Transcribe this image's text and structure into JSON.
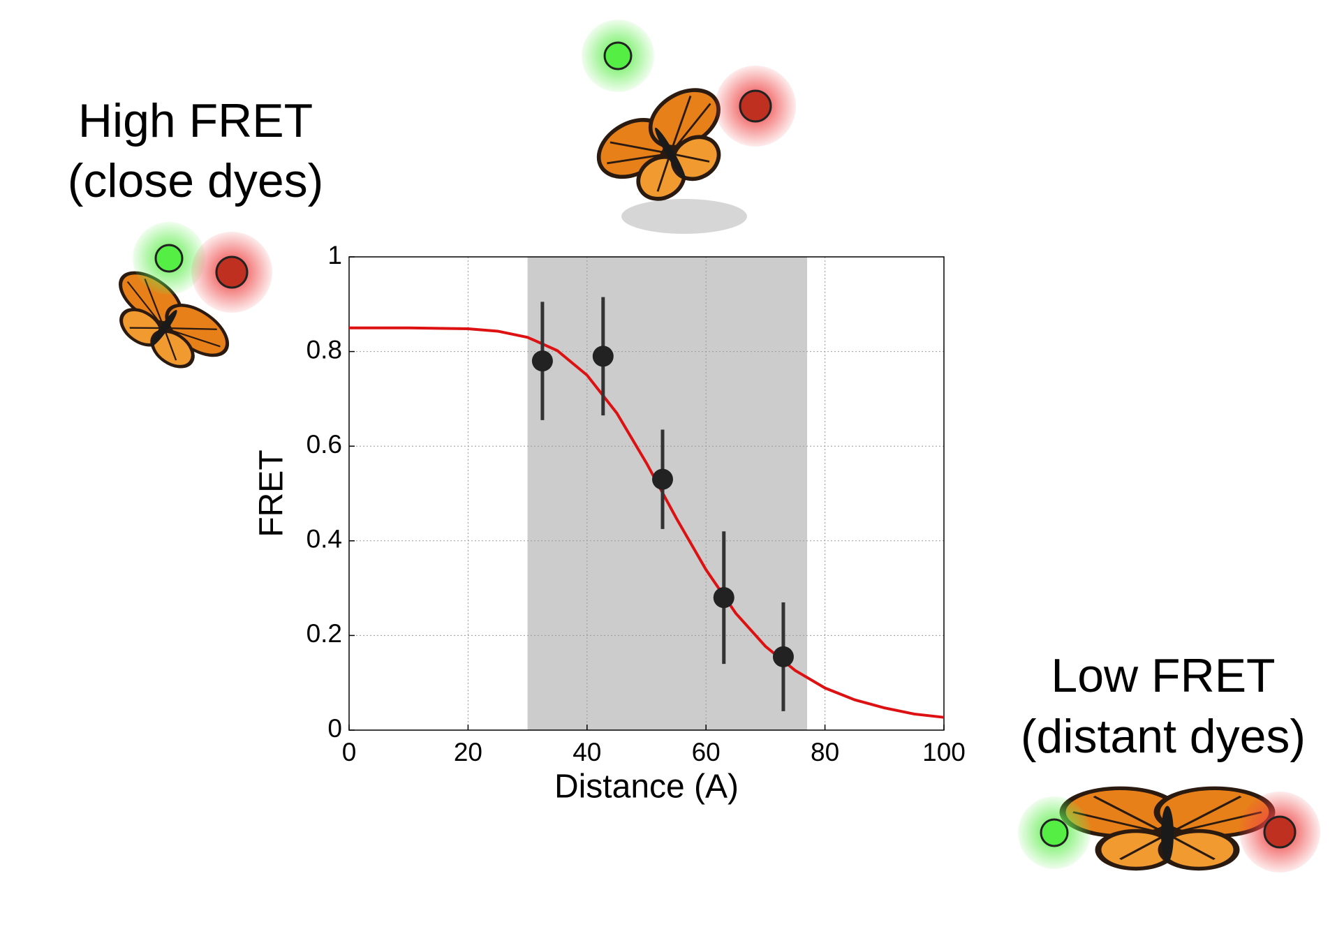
{
  "chart_data": {
    "type": "scatter",
    "xlabel": "Distance (A)",
    "ylabel": "FRET",
    "xlim": [
      0,
      100
    ],
    "ylim": [
      0,
      1
    ],
    "xticks": [
      0,
      20,
      40,
      60,
      80,
      100
    ],
    "yticks": [
      0,
      0.2,
      0.4,
      0.6,
      0.8,
      1
    ],
    "grid": true,
    "shaded_region": [
      30,
      77
    ],
    "shaded_color": "#cccccc",
    "curve": {
      "color": "#dd1111",
      "x": [
        0,
        10,
        20,
        25,
        30,
        35,
        40,
        45,
        50,
        55,
        60,
        65,
        70,
        75,
        80,
        85,
        90,
        95,
        100
      ],
      "values": [
        0.85,
        0.85,
        0.848,
        0.843,
        0.83,
        0.802,
        0.75,
        0.67,
        0.564,
        0.448,
        0.339,
        0.247,
        0.177,
        0.126,
        0.089,
        0.064,
        0.047,
        0.034,
        0.027
      ]
    },
    "points": {
      "color": "#222222",
      "x": [
        32.5,
        42.7,
        52.7,
        63,
        73
      ],
      "values": [
        0.78,
        0.79,
        0.53,
        0.28,
        0.155
      ],
      "errors": [
        0.125,
        0.125,
        0.105,
        0.14,
        0.115
      ]
    },
    "annotations": [
      {
        "lines": [
          "High FRET",
          "(close dyes)"
        ]
      },
      {
        "lines": [
          "Low FRET",
          "(distant dyes)"
        ]
      }
    ]
  }
}
